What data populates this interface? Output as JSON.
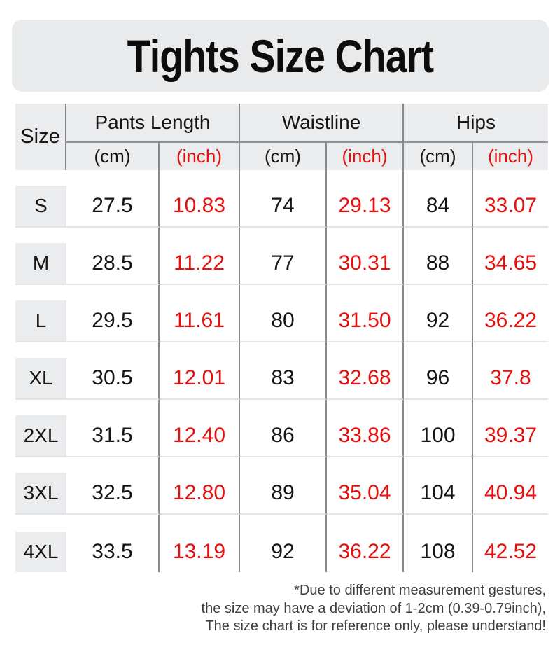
{
  "page": {
    "title": "Tights Size Chart"
  },
  "table": {
    "size_header": "Size",
    "group_headers": [
      "Pants Length",
      "Waistline",
      "Hips"
    ],
    "unit_labels": {
      "cm": "(cm)",
      "inch": "(inch)"
    },
    "rows": [
      {
        "size": "S",
        "pants_cm": "27.5",
        "pants_inch": "10.83",
        "waist_cm": "74",
        "waist_inch": "29.13",
        "hips_cm": "84",
        "hips_inch": "33.07"
      },
      {
        "size": "M",
        "pants_cm": "28.5",
        "pants_inch": "11.22",
        "waist_cm": "77",
        "waist_inch": "30.31",
        "hips_cm": "88",
        "hips_inch": "34.65"
      },
      {
        "size": "L",
        "pants_cm": "29.5",
        "pants_inch": "11.61",
        "waist_cm": "80",
        "waist_inch": "31.50",
        "hips_cm": "92",
        "hips_inch": "36.22"
      },
      {
        "size": "XL",
        "pants_cm": "30.5",
        "pants_inch": "12.01",
        "waist_cm": "83",
        "waist_inch": "32.68",
        "hips_cm": "96",
        "hips_inch": "37.8"
      },
      {
        "size": "2XL",
        "pants_cm": "31.5",
        "pants_inch": "12.40",
        "waist_cm": "86",
        "waist_inch": "33.86",
        "hips_cm": "100",
        "hips_inch": "39.37"
      },
      {
        "size": "3XL",
        "pants_cm": "32.5",
        "pants_inch": "12.80",
        "waist_cm": "89",
        "waist_inch": "35.04",
        "hips_cm": "104",
        "hips_inch": "40.94"
      },
      {
        "size": "4XL",
        "pants_cm": "33.5",
        "pants_inch": "13.19",
        "waist_cm": "92",
        "waist_inch": "36.22",
        "hips_cm": "108",
        "hips_inch": "42.52"
      }
    ]
  },
  "footnote": {
    "line1": "*Due to different measurement gestures,",
    "line2": "the size may have a deviation of 1-2cm (0.39-0.79inch),",
    "line3": "The size chart is for reference only, please understand!"
  },
  "colors": {
    "accent_red": "#e60f0c",
    "header_bg": "#ebecee",
    "banner_bg": "#e9eaec",
    "divider_dark": "#87888b",
    "divider_light": "#e3e4e6"
  }
}
